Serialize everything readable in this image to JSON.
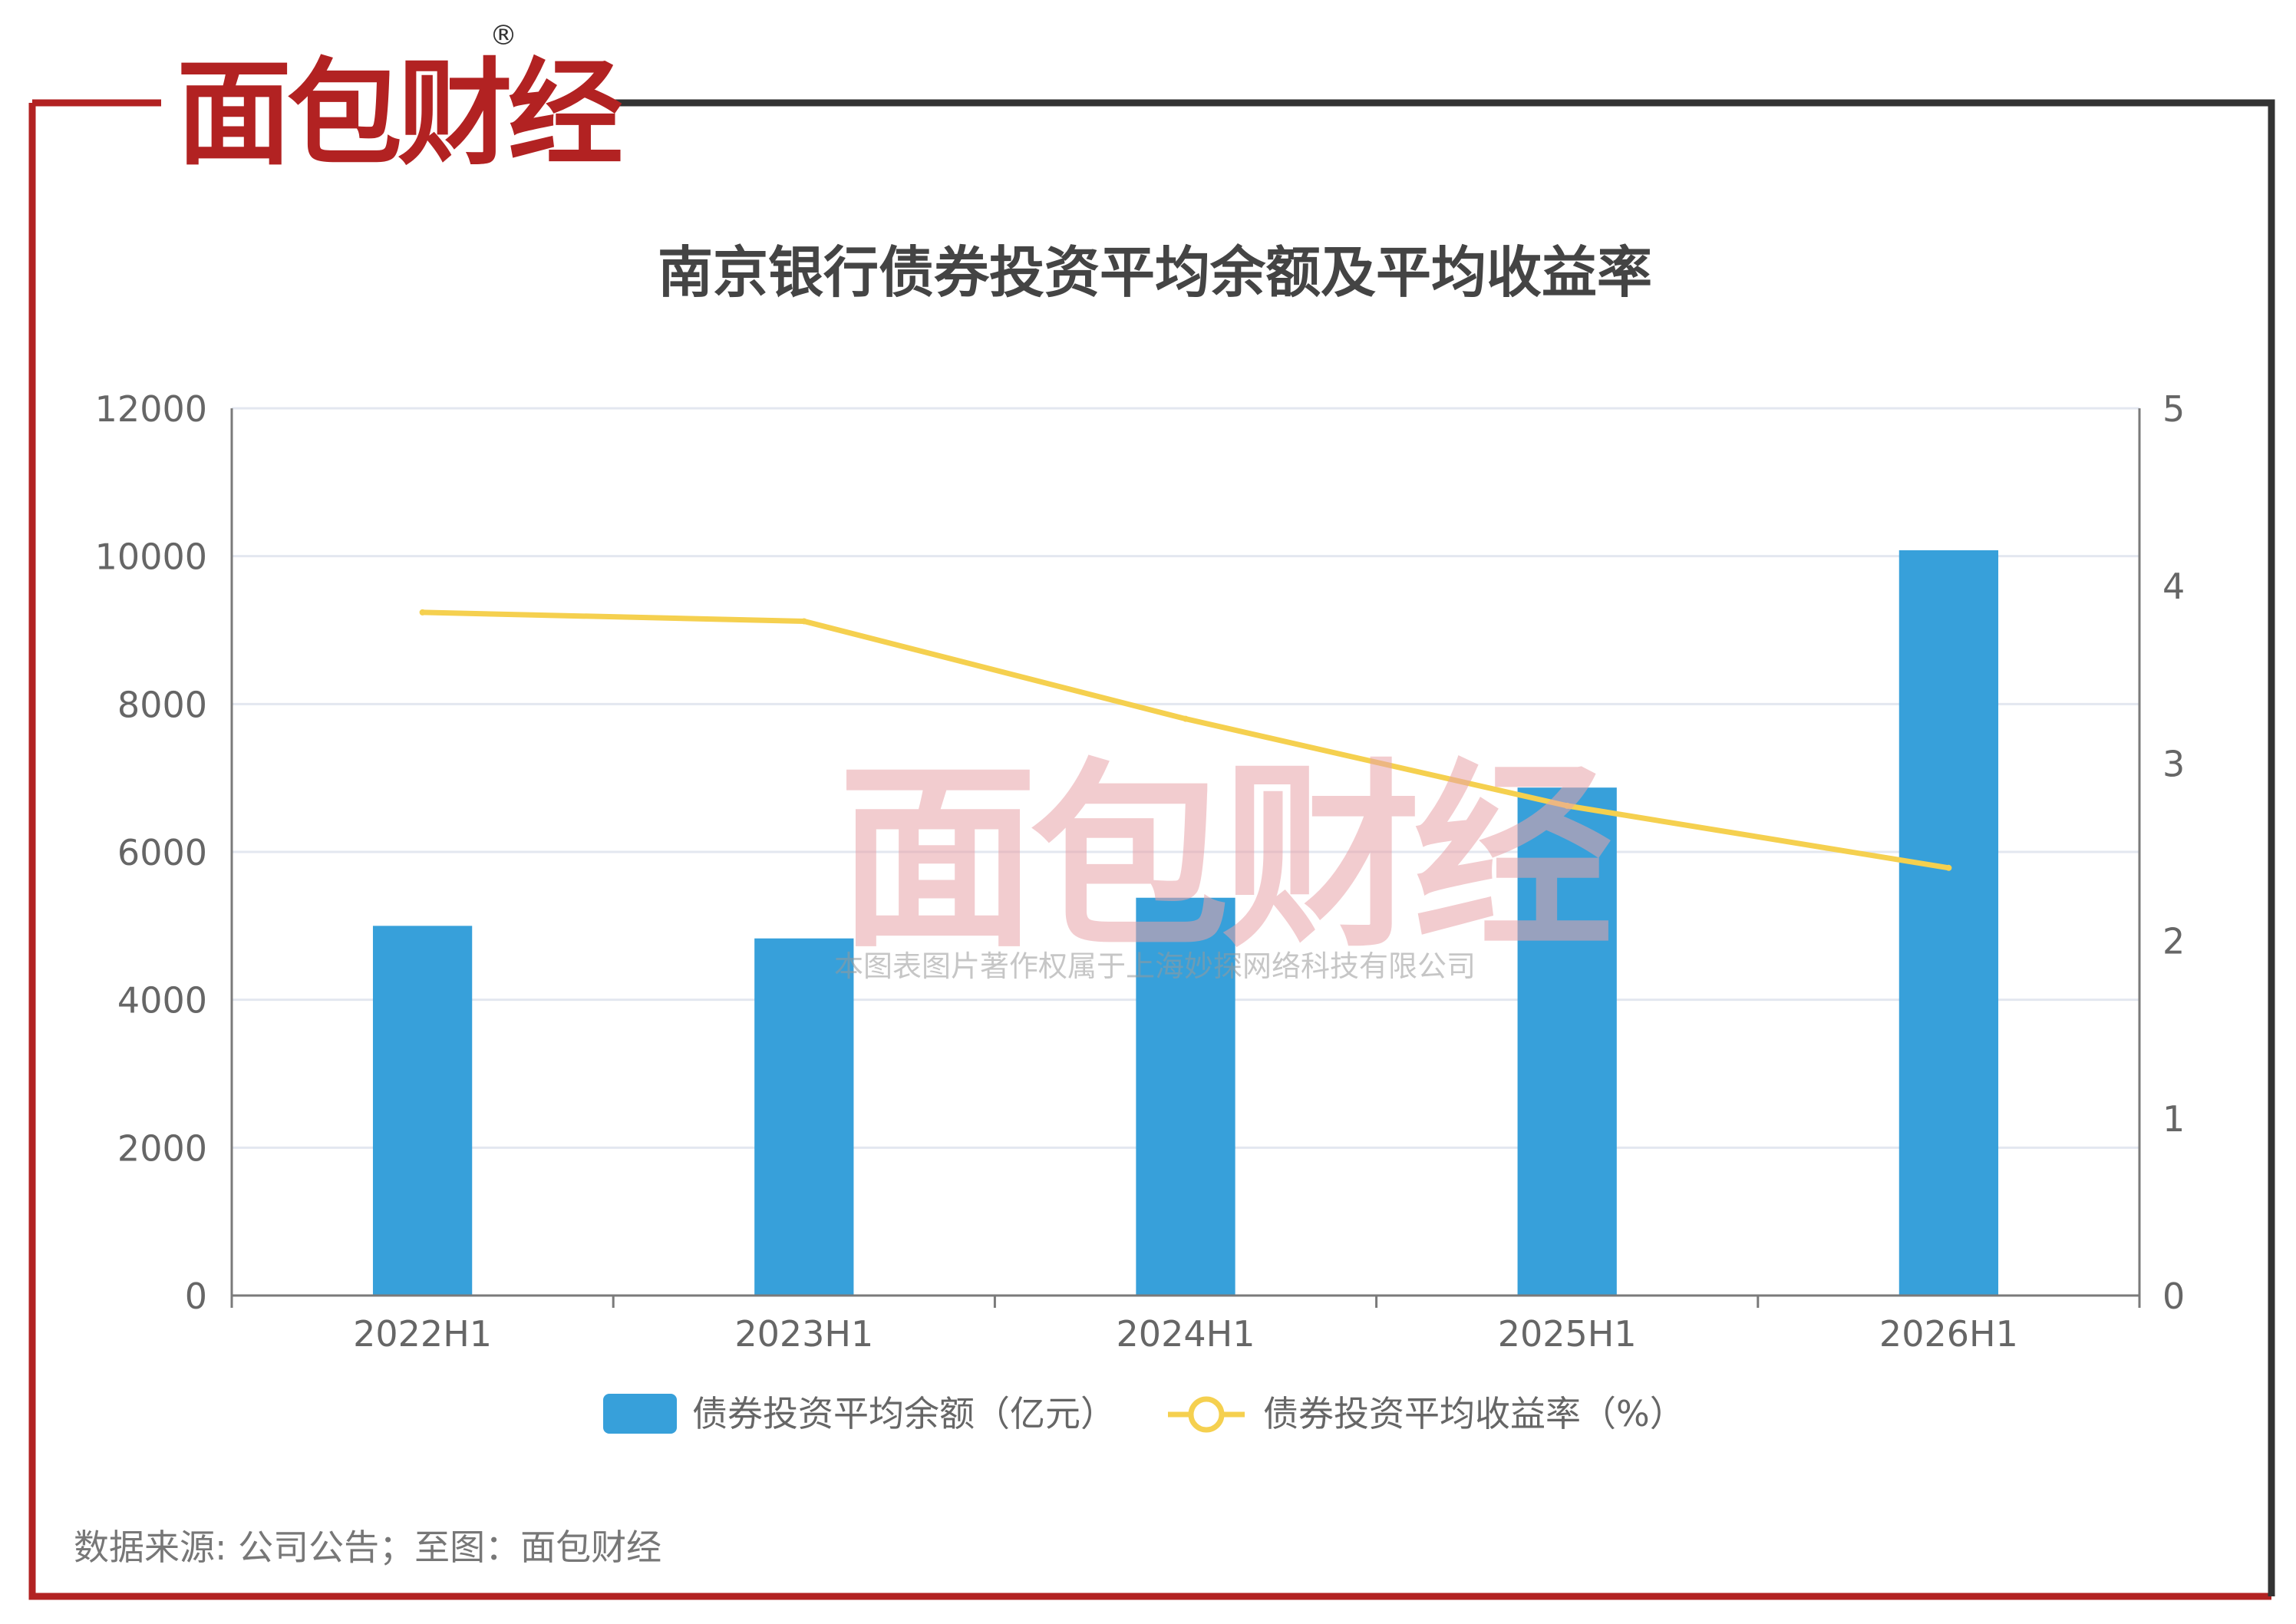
{
  "brand": {
    "logo_text": "面包财经",
    "registered_mark": "®"
  },
  "colors": {
    "frame_red": "#b22222",
    "frame_dark": "#333333",
    "bar": "#37a0da",
    "line": "#f5d04f",
    "watermark": "#e8a3a8",
    "grid": "#e3e7f0",
    "axis": "#7a7a7a",
    "text": "#666666"
  },
  "watermark": {
    "logo_text": "面包财经",
    "copyright": "本图表图片著作权属于上海妙探网络科技有限公司"
  },
  "source": "数据来源: 公司公告；至图：面包财经",
  "chart_data": {
    "type": "bar",
    "title": "南京银行债券投资平均余额及平均收益率",
    "categories": [
      "2022H1",
      "2023H1",
      "2024H1",
      "2025H1",
      "2026H1"
    ],
    "series": [
      {
        "name": "债券投资平均余额（亿元）",
        "type": "bar",
        "axis": "left",
        "values": [
          5000,
          4830,
          5380,
          6870,
          10080
        ]
      },
      {
        "name": "债券投资平均收益率（%）",
        "type": "line",
        "axis": "right",
        "values": [
          3.85,
          3.8,
          3.25,
          2.76,
          2.41
        ]
      }
    ],
    "y_left": {
      "min": 0,
      "max": 12000,
      "ticks": [
        "0",
        "2000",
        "4000",
        "6000",
        "8000",
        "10000",
        "12000"
      ]
    },
    "y_right": {
      "min": 0,
      "max": 5,
      "ticks": [
        "0",
        "1",
        "2",
        "3",
        "4",
        "5"
      ]
    },
    "grid": true,
    "legend": "bottom-center"
  }
}
